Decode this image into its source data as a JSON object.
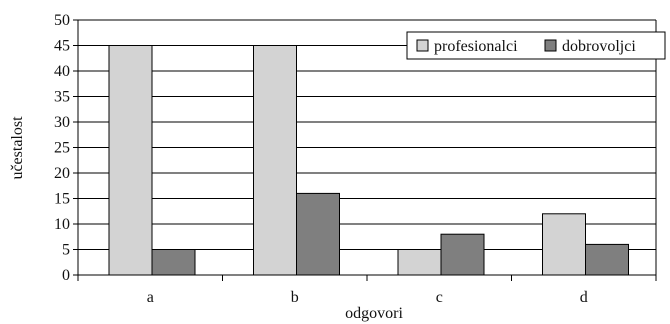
{
  "chart_data": {
    "type": "bar",
    "title": "",
    "xlabel": "odgovori",
    "ylabel": "učestalost",
    "categories": [
      "a",
      "b",
      "c",
      "d"
    ],
    "series": [
      {
        "name": "profesionalci",
        "values": [
          45,
          45,
          5,
          12
        ],
        "color": "#d3d3d3"
      },
      {
        "name": "dobrovoljci",
        "values": [
          5,
          16,
          8,
          6
        ],
        "color": "#7f7f7f"
      }
    ],
    "ylim": [
      0,
      50
    ],
    "yticks": [
      "0",
      "5",
      "10",
      "15",
      "20",
      "25",
      "30",
      "35",
      "40",
      "45",
      "50"
    ],
    "grid": true,
    "legend_position": "top-right"
  }
}
